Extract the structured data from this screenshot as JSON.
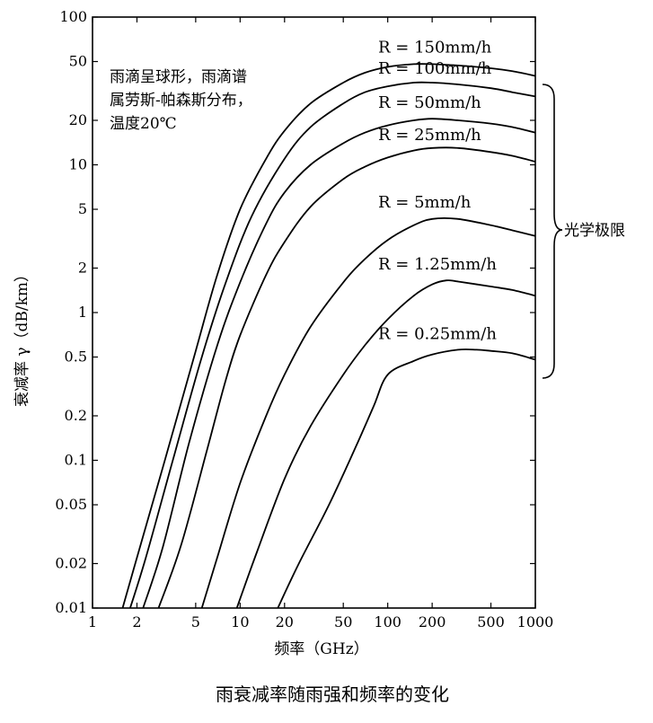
{
  "chart_data": {
    "type": "line",
    "scale": {
      "x": "log",
      "y": "log"
    },
    "xlim": [
      1,
      1000
    ],
    "ylim": [
      0.01,
      100
    ],
    "x_ticks": [
      1,
      2,
      5,
      10,
      20,
      50,
      100,
      200,
      500,
      1000
    ],
    "x_tick_labels": [
      "1",
      "2",
      "5",
      "10",
      "20",
      "50",
      "100",
      "200",
      "500",
      "1000"
    ],
    "y_ticks": [
      0.01,
      0.02,
      0.05,
      0.1,
      0.2,
      0.5,
      1,
      2,
      5,
      10,
      20,
      50,
      100
    ],
    "y_tick_labels": [
      "0.01",
      "0.02",
      "0.05",
      "0.1",
      "0.2",
      "0.5",
      "1",
      "2",
      "5",
      "10",
      "20",
      "50",
      "100"
    ],
    "xlabel": "频率（GHz）",
    "ylabel": "衰减率 γ（dB/km）",
    "title": "雨衰减率随雨强和频率的变化",
    "note_lines": [
      "雨滴呈球形，雨滴谱",
      "属劳斯-帕森斯分布，",
      "温度20℃"
    ],
    "bracket_label": "光学极限",
    "grid": false,
    "series": [
      {
        "name": "R = 150mm/h",
        "x": [
          1.6,
          2,
          3,
          5,
          7,
          10,
          15,
          20,
          30,
          50,
          70,
          100,
          150,
          200,
          300,
          500,
          700,
          1000
        ],
        "y": [
          0.01,
          0.022,
          0.09,
          0.55,
          1.8,
          5,
          11,
          17,
          26,
          36,
          42,
          46,
          48,
          48,
          47,
          45,
          43,
          40
        ]
      },
      {
        "name": "R = 100mm/h",
        "x": [
          1.8,
          2.3,
          3.5,
          5.5,
          8,
          12,
          20,
          30,
          50,
          70,
          100,
          150,
          200,
          300,
          500,
          700,
          1000
        ],
        "y": [
          0.01,
          0.022,
          0.1,
          0.5,
          1.6,
          4.5,
          11,
          18,
          26,
          31,
          34,
          36,
          36,
          35,
          33,
          31,
          29
        ]
      },
      {
        "name": "R = 50mm/h",
        "x": [
          2.2,
          3,
          4.5,
          7,
          10,
          15,
          20,
          30,
          50,
          70,
          100,
          150,
          200,
          300,
          500,
          700,
          1000
        ],
        "y": [
          0.01,
          0.026,
          0.13,
          0.6,
          1.6,
          4,
          6.5,
          10,
          14,
          16.5,
          18.5,
          20,
          20.5,
          20,
          19,
          18,
          16.5
        ]
      },
      {
        "name": "R = 25mm/h",
        "x": [
          2.8,
          4,
          6,
          8,
          10,
          15,
          20,
          30,
          50,
          70,
          100,
          150,
          200,
          300,
          500,
          700,
          1000
        ],
        "y": [
          0.01,
          0.027,
          0.12,
          0.35,
          0.7,
          1.8,
          3,
          5.2,
          8,
          9.7,
          11.2,
          12.5,
          13,
          13,
          12.2,
          11.5,
          10.5
        ]
      },
      {
        "name": "R = 5mm/h",
        "x": [
          5.5,
          7,
          10,
          15,
          20,
          30,
          50,
          70,
          100,
          150,
          200,
          300,
          500,
          700,
          1000
        ],
        "y": [
          0.01,
          0.022,
          0.07,
          0.2,
          0.38,
          0.8,
          1.6,
          2.3,
          3.1,
          3.9,
          4.3,
          4.3,
          3.9,
          3.6,
          3.3
        ]
      },
      {
        "name": "R = 1.25mm/h",
        "x": [
          9.5,
          13,
          20,
          30,
          50,
          70,
          100,
          150,
          200,
          250,
          300,
          500,
          700,
          1000
        ],
        "y": [
          0.01,
          0.024,
          0.075,
          0.17,
          0.38,
          0.6,
          0.9,
          1.3,
          1.55,
          1.65,
          1.62,
          1.5,
          1.42,
          1.3
        ]
      },
      {
        "name": "R = 0.25mm/h",
        "x": [
          18,
          25,
          40,
          60,
          80,
          100,
          150,
          200,
          300,
          400,
          500,
          700,
          1000
        ],
        "y": [
          0.01,
          0.02,
          0.05,
          0.12,
          0.23,
          0.38,
          0.47,
          0.52,
          0.56,
          0.56,
          0.55,
          0.53,
          0.48
        ]
      }
    ]
  }
}
